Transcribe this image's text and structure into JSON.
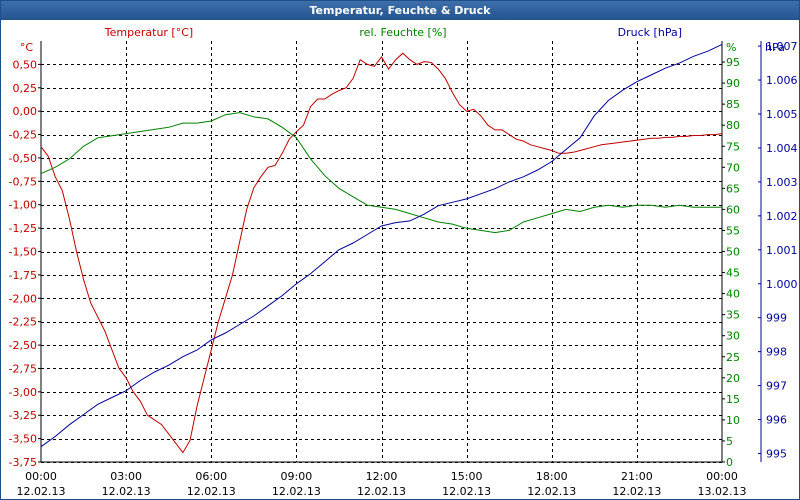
{
  "window": {
    "title": "Temperatur, Feuchte & Druck"
  },
  "chart_data": {
    "type": "line",
    "title": "Temperatur, Feuchte & Druck",
    "colors": {
      "temperature": "#c00000",
      "humidity": "#008000",
      "pressure": "#00009c",
      "grid": "#000000"
    },
    "x_axis": {
      "ticks": [
        {
          "time": "00:00",
          "date": "12.02.13"
        },
        {
          "time": "03:00",
          "date": "12.02.13"
        },
        {
          "time": "06:00",
          "date": "12.02.13"
        },
        {
          "time": "09:00",
          "date": "12.02.13"
        },
        {
          "time": "12:00",
          "date": "12.02.13"
        },
        {
          "time": "15:00",
          "date": "12.02.13"
        },
        {
          "time": "18:00",
          "date": "12.02.13"
        },
        {
          "time": "21:00",
          "date": "12.02.13"
        },
        {
          "time": "00:00",
          "date": "13.02.13"
        }
      ],
      "range_hours": [
        0,
        24
      ]
    },
    "temperature_axis": {
      "label": "Temperatur [°C]",
      "unit": "°C",
      "side": "left",
      "ylim": [
        -3.75,
        0.75
      ],
      "ticks": [
        "0,50",
        "0,25",
        "0,00",
        "-0,25",
        "-0,50",
        "-0,75",
        "-1,00",
        "-1,25",
        "-1,50",
        "-1,75",
        "-2,00",
        "-2,25",
        "-2,50",
        "-2,75",
        "-3,00",
        "-3,25",
        "-3,50",
        "-3,75"
      ],
      "tick_values": [
        0.5,
        0.25,
        0,
        -0.25,
        -0.5,
        -0.75,
        -1,
        -1.25,
        -1.5,
        -1.75,
        -2,
        -2.25,
        -2.5,
        -2.75,
        -3,
        -3.25,
        -3.5,
        -3.75
      ]
    },
    "humidity_axis": {
      "label": "rel. Feuchte [%]",
      "unit": "%",
      "side": "right",
      "ylim": [
        0,
        100
      ],
      "ticks": [
        "95",
        "90",
        "85",
        "80",
        "75",
        "70",
        "65",
        "60",
        "55",
        "50",
        "45",
        "40",
        "35",
        "30",
        "25",
        "20",
        "15",
        "10",
        "5",
        "0"
      ],
      "tick_values": [
        95,
        90,
        85,
        80,
        75,
        70,
        65,
        60,
        55,
        50,
        45,
        40,
        35,
        30,
        25,
        20,
        15,
        10,
        5,
        0
      ]
    },
    "pressure_axis": {
      "label": "Druck [hPa]",
      "unit": "hPa",
      "side": "right",
      "ylim": [
        994.75,
        1007.15
      ],
      "ticks": [
        "1.007",
        "1.006",
        "1.005",
        "1.004",
        "1.003",
        "1.002",
        "1.001",
        "1.000",
        "999",
        "998",
        "997",
        "996",
        "995"
      ],
      "tick_values": [
        1007,
        1006,
        1005,
        1004,
        1003,
        1002,
        1001,
        1000,
        999,
        998,
        997,
        996,
        995
      ]
    },
    "grid": true,
    "series": [
      {
        "name": "Temperatur [°C]",
        "axis": "temperature",
        "x": [
          0,
          0.25,
          0.5,
          0.75,
          1,
          1.25,
          1.5,
          1.75,
          2,
          2.25,
          2.5,
          2.75,
          3,
          3.25,
          3.5,
          3.75,
          4,
          4.25,
          4.5,
          4.75,
          5,
          5.25,
          5.5,
          5.75,
          6,
          6.25,
          6.5,
          6.75,
          7,
          7.25,
          7.5,
          7.75,
          8,
          8.25,
          8.5,
          8.75,
          9,
          9.25,
          9.5,
          9.75,
          10,
          10.25,
          10.5,
          10.75,
          11,
          11.25,
          11.5,
          11.75,
          12,
          12.25,
          12.5,
          12.75,
          13,
          13.25,
          13.5,
          13.75,
          14,
          14.25,
          14.5,
          14.75,
          15,
          15.25,
          15.5,
          15.75,
          16,
          16.25,
          16.5,
          16.75,
          17,
          17.25,
          17.5,
          17.75,
          18,
          18.25,
          18.5,
          18.75,
          19,
          19.25,
          19.5,
          19.75,
          20,
          20.25,
          20.5,
          20.75,
          21,
          21.25,
          21.5,
          21.75,
          22,
          22.25,
          22.5,
          22.75,
          23,
          23.25,
          23.5,
          23.75,
          24
        ],
        "values": [
          -0.38,
          -0.48,
          -0.7,
          -0.85,
          -1.15,
          -1.5,
          -1.8,
          -2.05,
          -2.2,
          -2.35,
          -2.55,
          -2.75,
          -2.85,
          -3.0,
          -3.1,
          -3.25,
          -3.3,
          -3.35,
          -3.45,
          -3.55,
          -3.65,
          -3.52,
          -3.15,
          -2.85,
          -2.55,
          -2.25,
          -2.0,
          -1.75,
          -1.4,
          -1.05,
          -0.82,
          -0.7,
          -0.6,
          -0.58,
          -0.45,
          -0.3,
          -0.22,
          -0.15,
          0.05,
          0.13,
          0.13,
          0.18,
          0.22,
          0.25,
          0.35,
          0.55,
          0.5,
          0.48,
          0.58,
          0.45,
          0.55,
          0.62,
          0.55,
          0.5,
          0.53,
          0.52,
          0.45,
          0.35,
          0.2,
          0.07,
          0.0,
          0.02,
          -0.05,
          -0.15,
          -0.2,
          -0.2,
          -0.25,
          -0.3,
          -0.32,
          -0.36,
          -0.38,
          -0.4,
          -0.42,
          -0.45,
          -0.45,
          -0.44,
          -0.42,
          -0.4,
          -0.38,
          -0.36,
          -0.35,
          -0.34,
          -0.33,
          -0.32,
          -0.31,
          -0.3,
          -0.29,
          -0.29,
          -0.28,
          -0.28,
          -0.27,
          -0.27,
          -0.26,
          -0.26,
          -0.25,
          -0.25,
          -0.24
        ]
      },
      {
        "name": "rel. Feuchte [%]",
        "axis": "humidity",
        "x": [
          0,
          0.5,
          1,
          1.5,
          2,
          2.5,
          3,
          3.5,
          4,
          4.5,
          5,
          5.5,
          6,
          6.5,
          7,
          7.5,
          8,
          8.5,
          9,
          9.5,
          10,
          10.5,
          11,
          11.5,
          12,
          12.5,
          13,
          13.5,
          14,
          14.5,
          15,
          15.5,
          16,
          16.5,
          17,
          17.5,
          18,
          18.5,
          19,
          19.5,
          20,
          20.5,
          21,
          21.5,
          22,
          22.5,
          23,
          23.5,
          24
        ],
        "values": [
          68.5,
          70,
          72,
          75,
          77,
          77.5,
          78,
          78.5,
          79,
          79.5,
          80.5,
          80.5,
          81,
          82.5,
          83,
          82,
          81.5,
          79.5,
          77,
          72,
          68,
          65,
          63,
          61,
          60.5,
          60,
          59,
          58,
          57,
          56.5,
          55.5,
          55,
          54.5,
          55,
          57,
          58,
          59,
          60,
          59.5,
          60.5,
          61,
          60.5,
          61,
          61,
          60.5,
          61,
          60.5,
          60.5,
          60.5
        ]
      },
      {
        "name": "Druck [hPa]",
        "axis": "pressure",
        "x": [
          0,
          0.5,
          1,
          1.5,
          2,
          2.5,
          3,
          3.5,
          4,
          4.5,
          5,
          5.5,
          6,
          6.5,
          7,
          7.5,
          8,
          8.5,
          9,
          9.5,
          10,
          10.5,
          11,
          11.5,
          12,
          12.5,
          13,
          13.5,
          14,
          14.5,
          15,
          15.5,
          16,
          16.5,
          17,
          17.5,
          18,
          18.5,
          19,
          19.5,
          20,
          20.5,
          21,
          21.5,
          22,
          22.5,
          23,
          23.5,
          24
        ],
        "values": [
          995.2,
          995.5,
          995.85,
          996.15,
          996.45,
          996.65,
          996.85,
          997.15,
          997.4,
          997.6,
          997.85,
          998.05,
          998.35,
          998.55,
          998.8,
          999.05,
          999.35,
          999.65,
          1000.0,
          1000.3,
          1000.65,
          1001.0,
          1001.2,
          1001.45,
          1001.7,
          1001.8,
          1001.85,
          1002.05,
          1002.3,
          1002.4,
          1002.5,
          1002.65,
          1002.8,
          1003.0,
          1003.15,
          1003.35,
          1003.6,
          1003.95,
          1004.3,
          1004.95,
          1005.4,
          1005.7,
          1005.95,
          1006.15,
          1006.35,
          1006.5,
          1006.7,
          1006.85,
          1007.05
        ]
      }
    ]
  }
}
